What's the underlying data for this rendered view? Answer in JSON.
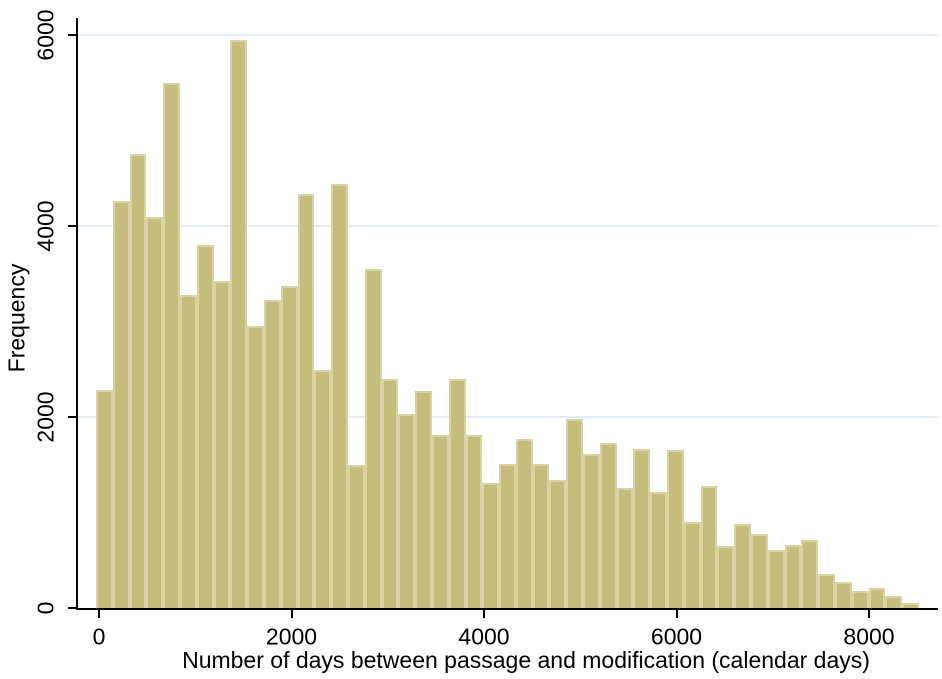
{
  "chart_data": {
    "type": "bar",
    "subtype": "histogram",
    "title": "",
    "xlabel": "Number of days between passage and modification (calendar days)",
    "ylabel": "Frequency",
    "bin_start": 0,
    "bin_width": 174.5,
    "values": [
      2280,
      4260,
      4750,
      4090,
      5500,
      3280,
      3800,
      3420,
      5944,
      2950,
      3220,
      3370,
      4340,
      2490,
      4440,
      1500,
      3550,
      2400,
      2030,
      2270,
      1810,
      2400,
      1810,
      1310,
      1510,
      1770,
      1510,
      1340,
      1980,
      1610,
      1730,
      1260,
      1670,
      1210,
      1650,
      900,
      1280,
      650,
      880,
      780,
      610,
      660,
      715,
      360,
      270,
      180,
      210,
      130,
      55
    ],
    "x_ticks": [
      0,
      2000,
      4000,
      6000,
      8000
    ],
    "y_ticks": [
      0,
      2000,
      4000,
      6000
    ],
    "xlim": [
      -240,
      8730
    ],
    "ylim": [
      0,
      6180
    ],
    "grid": true,
    "legend": "none",
    "bar_color": "#c6bd7d",
    "bar_edge_color": "#d8d2a5",
    "grid_color": "#e2eef1",
    "axis_color": "#000000",
    "background": "#ffffff"
  }
}
